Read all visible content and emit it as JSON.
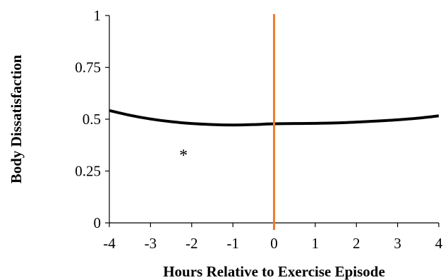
{
  "chart_data": {
    "type": "line",
    "title": "",
    "xlabel": "Hours Relative to Exercise Episode",
    "ylabel": "Body Dissatisfaction",
    "xlim": [
      -4,
      4
    ],
    "ylim": [
      0,
      1
    ],
    "x_ticks": [
      -4,
      -3,
      -2,
      -1,
      0,
      1,
      2,
      3,
      4
    ],
    "x_tick_labels": [
      "-4",
      "-3",
      "-2",
      "-1",
      "0",
      "1",
      "2",
      "3",
      "4"
    ],
    "y_ticks": [
      0,
      0.25,
      0.5,
      0.75,
      1
    ],
    "y_tick_labels": [
      "0",
      "0.25",
      "0.5",
      "0.75",
      "1"
    ],
    "grid": false,
    "legend": "none",
    "series": [
      {
        "color": "#000000",
        "x": [
          -4,
          -3.5,
          -3,
          -2.5,
          -2,
          -1.5,
          -1,
          -0.5,
          0,
          0.5,
          1,
          1.5,
          2,
          2.5,
          3,
          3.5,
          4
        ],
        "y": [
          0.542,
          0.519,
          0.501,
          0.488,
          0.479,
          0.474,
          0.472,
          0.474,
          0.478,
          0.479,
          0.48,
          0.482,
          0.486,
          0.491,
          0.497,
          0.505,
          0.516
        ]
      }
    ],
    "reference_line": {
      "axis": "x",
      "value": 0,
      "color": "#ED7D31"
    },
    "annotations": [
      {
        "text": "*",
        "x": -2.2,
        "y": 0.34
      }
    ]
  }
}
